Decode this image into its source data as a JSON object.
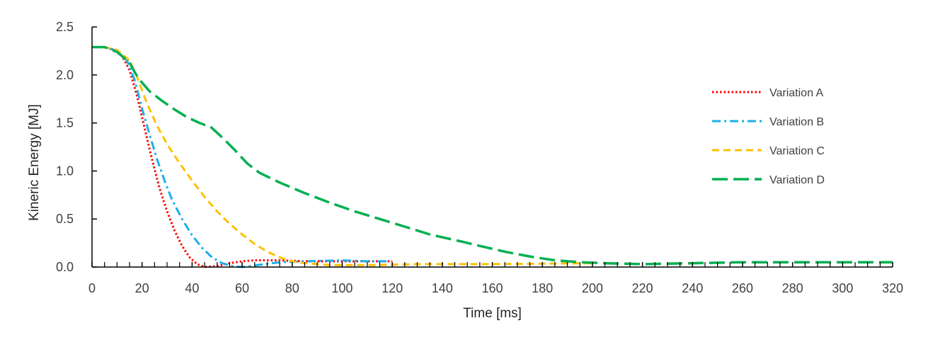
{
  "chart_data": {
    "type": "line",
    "title": "",
    "xlabel": "Time [ms]",
    "ylabel": "Kineric Energy [MJ]",
    "xlim": [
      0,
      320
    ],
    "ylim": [
      0,
      2.5
    ],
    "xticks": [
      0,
      20,
      40,
      60,
      80,
      100,
      120,
      140,
      160,
      180,
      200,
      220,
      240,
      260,
      280,
      300,
      320
    ],
    "yticks": [
      0,
      0.5,
      1,
      1.5,
      2,
      2.5
    ],
    "xtick_labels": [
      "0",
      "20",
      "40",
      "60",
      "80",
      "100",
      "120",
      "140",
      "160",
      "180",
      "200",
      "220",
      "240",
      "260",
      "280",
      "300",
      "320"
    ],
    "ytick_labels": [
      "0.0",
      "0.5",
      "1.0",
      "1.5",
      "2.0",
      "2.5"
    ],
    "grid": false,
    "legend_position": "right",
    "series": [
      {
        "name": "Variation A",
        "color": "#ff0000",
        "dash": "dotted",
        "points": [
          [
            0,
            2.29
          ],
          [
            5,
            2.29
          ],
          [
            8,
            2.27
          ],
          [
            12,
            2.2
          ],
          [
            15,
            2.05
          ],
          [
            18,
            1.78
          ],
          [
            21,
            1.45
          ],
          [
            24,
            1.12
          ],
          [
            27,
            0.82
          ],
          [
            30,
            0.58
          ],
          [
            33,
            0.38
          ],
          [
            36,
            0.22
          ],
          [
            39,
            0.1
          ],
          [
            42,
            0.03
          ],
          [
            45,
            0.0
          ],
          [
            50,
            0.01
          ],
          [
            55,
            0.04
          ],
          [
            60,
            0.06
          ],
          [
            65,
            0.07
          ],
          [
            75,
            0.07
          ],
          [
            85,
            0.06
          ],
          [
            100,
            0.06
          ],
          [
            110,
            0.06
          ],
          [
            120,
            0.06
          ]
        ]
      },
      {
        "name": "Variation B",
        "color": "#1ab0e8",
        "dash": "dashdot",
        "points": [
          [
            0,
            2.29
          ],
          [
            5,
            2.29
          ],
          [
            10,
            2.25
          ],
          [
            14,
            2.15
          ],
          [
            17,
            1.95
          ],
          [
            20,
            1.65
          ],
          [
            23,
            1.38
          ],
          [
            26,
            1.12
          ],
          [
            29,
            0.9
          ],
          [
            32,
            0.7
          ],
          [
            36,
            0.5
          ],
          [
            40,
            0.33
          ],
          [
            44,
            0.2
          ],
          [
            48,
            0.1
          ],
          [
            52,
            0.04
          ],
          [
            56,
            0.01
          ],
          [
            60,
            0.0
          ],
          [
            66,
            0.02
          ],
          [
            75,
            0.05
          ],
          [
            85,
            0.06
          ],
          [
            100,
            0.07
          ],
          [
            110,
            0.06
          ],
          [
            118,
            0.06
          ]
        ]
      },
      {
        "name": "Variation C",
        "color": "#ffc000",
        "dash": "dashed",
        "points": [
          [
            0,
            2.29
          ],
          [
            5,
            2.29
          ],
          [
            10,
            2.26
          ],
          [
            15,
            2.15
          ],
          [
            18,
            1.98
          ],
          [
            22,
            1.7
          ],
          [
            26,
            1.47
          ],
          [
            30,
            1.28
          ],
          [
            35,
            1.08
          ],
          [
            40,
            0.9
          ],
          [
            45,
            0.73
          ],
          [
            50,
            0.58
          ],
          [
            55,
            0.45
          ],
          [
            60,
            0.34
          ],
          [
            65,
            0.24
          ],
          [
            70,
            0.16
          ],
          [
            75,
            0.1
          ],
          [
            80,
            0.06
          ],
          [
            85,
            0.04
          ],
          [
            90,
            0.03
          ],
          [
            95,
            0.02
          ],
          [
            100,
            0.02
          ],
          [
            110,
            0.02
          ],
          [
            130,
            0.03
          ],
          [
            160,
            0.03
          ],
          [
            200,
            0.04
          ]
        ]
      },
      {
        "name": "Variation D",
        "color": "#00b050",
        "dash": "longdash",
        "points": [
          [
            0,
            2.29
          ],
          [
            5,
            2.29
          ],
          [
            10,
            2.24
          ],
          [
            15,
            2.13
          ],
          [
            17,
            2.03
          ],
          [
            19,
            1.95
          ],
          [
            23,
            1.83
          ],
          [
            28,
            1.73
          ],
          [
            33,
            1.64
          ],
          [
            38,
            1.56
          ],
          [
            43,
            1.5
          ],
          [
            45,
            1.48
          ],
          [
            47,
            1.47
          ],
          [
            52,
            1.35
          ],
          [
            57,
            1.22
          ],
          [
            62,
            1.08
          ],
          [
            67,
            0.98
          ],
          [
            75,
            0.88
          ],
          [
            85,
            0.77
          ],
          [
            95,
            0.67
          ],
          [
            105,
            0.58
          ],
          [
            115,
            0.5
          ],
          [
            125,
            0.42
          ],
          [
            135,
            0.34
          ],
          [
            145,
            0.28
          ],
          [
            147,
            0.27
          ],
          [
            155,
            0.22
          ],
          [
            165,
            0.16
          ],
          [
            175,
            0.11
          ],
          [
            185,
            0.07
          ],
          [
            195,
            0.05
          ],
          [
            205,
            0.04
          ],
          [
            220,
            0.03
          ],
          [
            240,
            0.04
          ],
          [
            260,
            0.05
          ],
          [
            280,
            0.05
          ],
          [
            300,
            0.05
          ],
          [
            320,
            0.05
          ]
        ]
      }
    ]
  }
}
